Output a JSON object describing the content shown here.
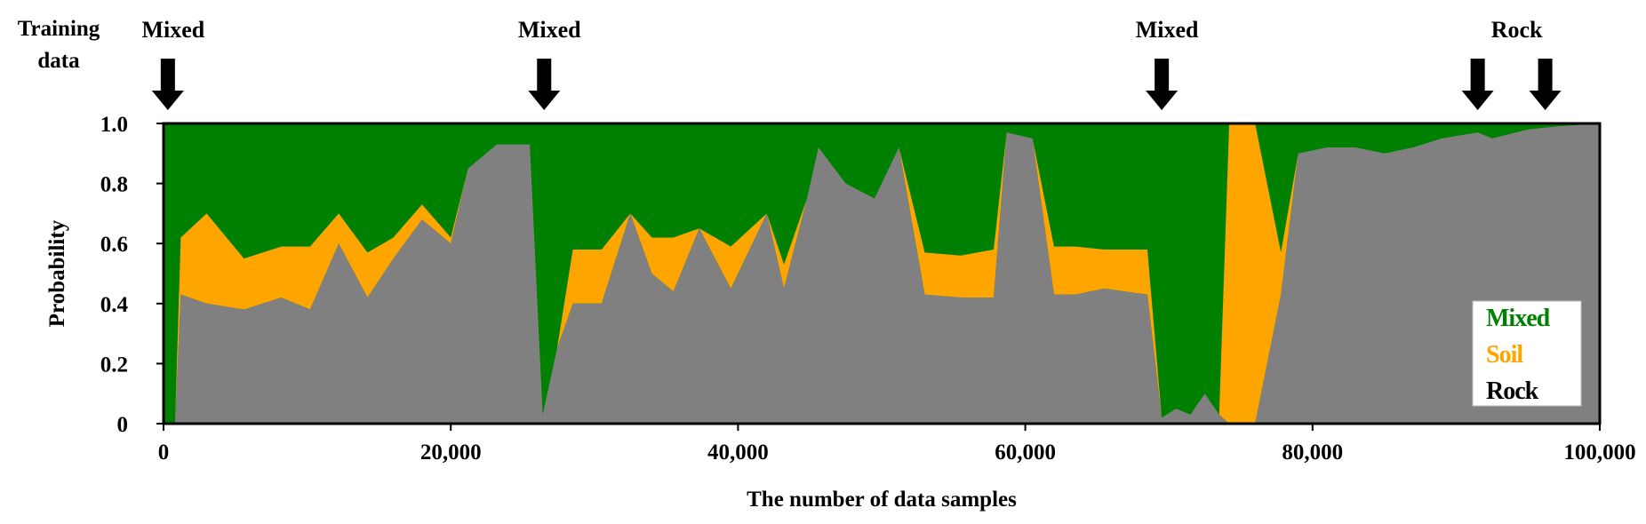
{
  "chart_data": {
    "type": "area",
    "title": "",
    "xlabel": "The number of data samples",
    "ylabel": "Probability",
    "xlim": [
      0,
      100000
    ],
    "ylim": [
      0,
      1
    ],
    "xticks": [
      0,
      20000,
      40000,
      60000,
      80000,
      100000
    ],
    "xtick_labels": [
      "0",
      "20,000",
      "40,000",
      "60,000",
      "80,000",
      "100,000"
    ],
    "yticks": [
      0,
      0.2,
      0.4,
      0.6,
      0.8,
      1.0
    ],
    "ytick_labels": [
      "0",
      "0.2",
      "0.4",
      "0.6",
      "0.8",
      "1.0"
    ],
    "grid": false,
    "stacked": true,
    "legend": {
      "placement": "bottom-right",
      "entries": [
        {
          "name": "Mixed",
          "color": "#008000"
        },
        {
          "name": "Soil",
          "color": "#FFA500"
        },
        {
          "name": "Rock",
          "color": "#000000"
        }
      ]
    },
    "training_data": {
      "label": "Training data",
      "annotations": [
        {
          "label": "Mixed",
          "x": [
            300
          ]
        },
        {
          "label": "Mixed",
          "x": [
            26500
          ]
        },
        {
          "label": "Mixed",
          "x": [
            69500
          ]
        },
        {
          "label": "Rock",
          "x": [
            91500,
            96200
          ]
        }
      ]
    },
    "series": [
      {
        "name": "Rock",
        "color": "#808080"
      },
      {
        "name": "Soil",
        "color": "#FFA500"
      },
      {
        "name": "Mixed",
        "color": "#008000"
      }
    ],
    "x": [
      0,
      800,
      1200,
      3000,
      5600,
      8200,
      10200,
      12200,
      14200,
      16000,
      18000,
      20000,
      21200,
      23200,
      25500,
      26400,
      27400,
      28500,
      30500,
      32500,
      34000,
      35500,
      37300,
      39500,
      42000,
      43200,
      44800,
      45600,
      47500,
      49500,
      51200,
      53000,
      55500,
      57800,
      58700,
      60500,
      62000,
      63500,
      65500,
      68500,
      69500,
      70500,
      71500,
      72500,
      73500,
      74200,
      76000,
      77800,
      79000,
      81000,
      83000,
      85000,
      87000,
      89000,
      91500,
      92500,
      95000,
      97000,
      100000
    ],
    "rock": [
      0.0,
      0.0,
      0.43,
      0.4,
      0.38,
      0.42,
      0.38,
      0.6,
      0.42,
      0.55,
      0.68,
      0.6,
      0.85,
      0.93,
      0.93,
      0.03,
      0.25,
      0.4,
      0.4,
      0.7,
      0.5,
      0.44,
      0.65,
      0.45,
      0.7,
      0.45,
      0.75,
      0.92,
      0.8,
      0.75,
      0.92,
      0.43,
      0.42,
      0.42,
      0.97,
      0.95,
      0.43,
      0.43,
      0.45,
      0.43,
      0.02,
      0.05,
      0.03,
      0.1,
      0.03,
      0.0,
      0.0,
      0.43,
      0.9,
      0.92,
      0.92,
      0.9,
      0.92,
      0.95,
      0.97,
      0.95,
      0.98,
      0.99,
      1.0
    ],
    "soil": [
      0.0,
      0.0,
      0.19,
      0.3,
      0.17,
      0.17,
      0.21,
      0.1,
      0.15,
      0.07,
      0.05,
      0.02,
      0.0,
      0.0,
      0.0,
      0.0,
      0.0,
      0.18,
      0.18,
      0.0,
      0.12,
      0.18,
      0.0,
      0.14,
      0.0,
      0.08,
      0.0,
      0.0,
      0.0,
      0.0,
      0.0,
      0.14,
      0.14,
      0.16,
      0.0,
      0.0,
      0.16,
      0.16,
      0.13,
      0.15,
      0.0,
      0.0,
      0.0,
      0.0,
      0.0,
      1.0,
      1.0,
      0.14,
      0.0,
      0.0,
      0.0,
      0.0,
      0.0,
      0.0,
      0.0,
      0.0,
      0.0,
      0.0,
      0.0
    ]
  }
}
